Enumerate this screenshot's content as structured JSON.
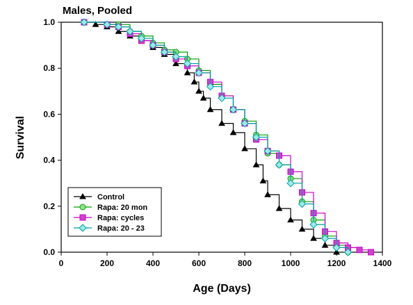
{
  "chart_data": {
    "type": "line",
    "title": "Males, Pooled",
    "xlabel": "Age (Days)",
    "ylabel": "Survival",
    "xlim": [
      0,
      1400
    ],
    "ylim": [
      0,
      1.0
    ],
    "xticks": [
      0,
      200,
      400,
      600,
      800,
      1000,
      1200,
      1400
    ],
    "yticks": [
      0.0,
      0.2,
      0.4,
      0.6,
      0.8,
      1.0
    ],
    "xtick_labels": [
      "0",
      "200",
      "400",
      "600",
      "800",
      "1000",
      "1200",
      "1400"
    ],
    "ytick_labels": [
      "0.0",
      "0.2",
      "0.4",
      "0.6",
      "0.8",
      "1.0"
    ],
    "legend_position": "bottom-left",
    "series": [
      {
        "name": "Control",
        "color": "#000000",
        "fill": "#000000",
        "marker": "triangle",
        "x": [
          100,
          150,
          200,
          250,
          300,
          350,
          400,
          450,
          500,
          550,
          580,
          600,
          620,
          650,
          700,
          750,
          800,
          850,
          880,
          900,
          950,
          1000,
          1050,
          1100,
          1150,
          1200
        ],
        "y": [
          1.0,
          0.99,
          0.98,
          0.96,
          0.94,
          0.92,
          0.89,
          0.86,
          0.82,
          0.78,
          0.74,
          0.7,
          0.67,
          0.62,
          0.56,
          0.52,
          0.45,
          0.38,
          0.31,
          0.25,
          0.19,
          0.14,
          0.1,
          0.06,
          0.03,
          0.0
        ]
      },
      {
        "name": "Rapa: 20 mon",
        "color": "#00a000",
        "fill": "#8ee08e",
        "marker": "circle",
        "x": [
          100,
          200,
          250,
          300,
          350,
          400,
          450,
          500,
          550,
          600,
          650,
          700,
          750,
          800,
          850,
          900,
          950,
          1000,
          1050,
          1100,
          1150,
          1200,
          1250
        ],
        "y": [
          1.0,
          0.99,
          0.99,
          0.96,
          0.94,
          0.91,
          0.88,
          0.87,
          0.84,
          0.79,
          0.73,
          0.68,
          0.62,
          0.57,
          0.51,
          0.43,
          0.38,
          0.32,
          0.22,
          0.14,
          0.07,
          0.03,
          0.0
        ]
      },
      {
        "name": "Rapa: cycles",
        "color": "#cc00cc",
        "fill": "#cc44cc",
        "marker": "square",
        "x": [
          100,
          200,
          250,
          300,
          350,
          400,
          450,
          500,
          550,
          600,
          650,
          700,
          750,
          800,
          850,
          900,
          950,
          1000,
          1050,
          1100,
          1150,
          1200,
          1250,
          1300,
          1350
        ],
        "y": [
          1.0,
          0.99,
          0.98,
          0.95,
          0.92,
          0.9,
          0.87,
          0.84,
          0.81,
          0.78,
          0.74,
          0.68,
          0.62,
          0.56,
          0.49,
          0.44,
          0.42,
          0.35,
          0.26,
          0.17,
          0.09,
          0.04,
          0.02,
          0.01,
          0.0
        ]
      },
      {
        "name": "Rapa: 20 - 23",
        "color": "#00a0a0",
        "fill": "#9fe8e8",
        "marker": "diamond",
        "x": [
          100,
          200,
          250,
          300,
          350,
          400,
          450,
          500,
          550,
          600,
          650,
          700,
          750,
          800,
          850,
          900,
          950,
          1000,
          1050,
          1100,
          1150,
          1200,
          1250
        ],
        "y": [
          1.0,
          0.99,
          0.98,
          0.96,
          0.93,
          0.9,
          0.87,
          0.85,
          0.82,
          0.78,
          0.72,
          0.67,
          0.62,
          0.56,
          0.5,
          0.44,
          0.38,
          0.3,
          0.21,
          0.12,
          0.06,
          0.02,
          0.0
        ]
      }
    ]
  }
}
